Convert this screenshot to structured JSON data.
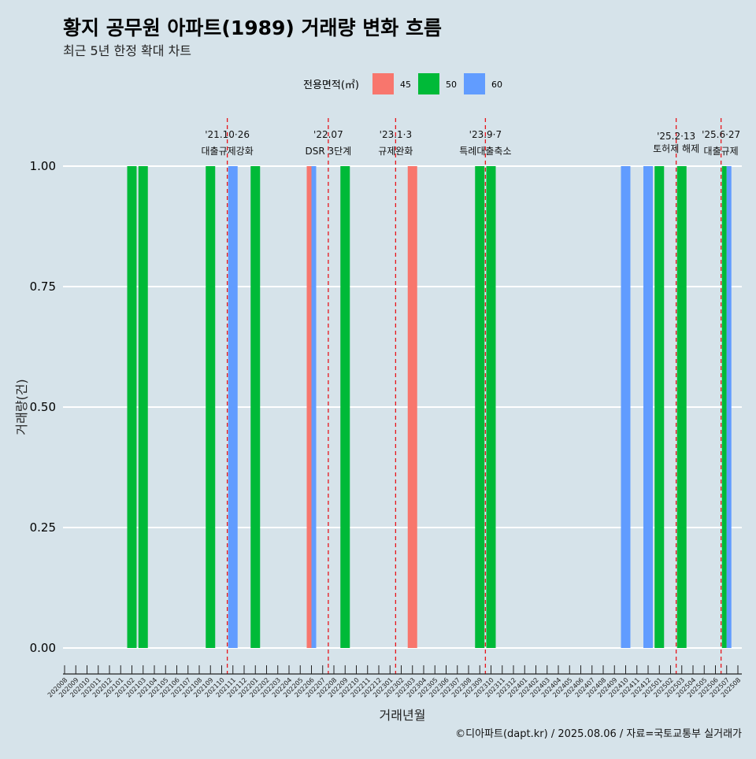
{
  "chart_data": {
    "type": "bar",
    "title": "황지 공무원 아파트(1989) 거래량 변화 흐름",
    "subtitle": "최근 5년 한정 확대 차트",
    "xlabel": "거래년월",
    "ylabel": "거래량(건)",
    "ylim": [
      0,
      1
    ],
    "yticks": [
      "0.00",
      "0.25",
      "0.50",
      "0.75",
      "1.00"
    ],
    "grid": true,
    "legend": {
      "title": "전용면적(㎡)",
      "placement": "top"
    },
    "categories": [
      "202008",
      "202009",
      "202010",
      "202011",
      "202012",
      "202101",
      "202102",
      "202103",
      "202104",
      "202105",
      "202106",
      "202107",
      "202108",
      "202109",
      "202110",
      "202111",
      "202112",
      "202201",
      "202202",
      "202203",
      "202204",
      "202205",
      "202206",
      "202207",
      "202208",
      "202209",
      "202210",
      "202211",
      "202212",
      "202301",
      "202302",
      "202303",
      "202304",
      "202305",
      "202306",
      "202307",
      "202308",
      "202309",
      "202310",
      "202311",
      "202312",
      "202401",
      "202402",
      "202403",
      "202404",
      "202405",
      "202406",
      "202407",
      "202408",
      "202409",
      "202410",
      "202411",
      "202412",
      "202501",
      "202502",
      "202503",
      "202504",
      "202505",
      "202506",
      "202507",
      "202508"
    ],
    "series": [
      {
        "name": "45",
        "color": "#f8766d",
        "values": [
          0,
          0,
          0,
          0,
          0,
          0,
          0,
          0,
          0,
          0,
          0,
          0,
          0,
          0,
          0,
          0,
          0,
          0,
          0,
          0,
          0,
          0,
          1,
          0,
          0,
          0,
          0,
          0,
          0,
          0,
          0,
          1,
          0,
          0,
          0,
          0,
          0,
          0,
          0,
          0,
          0,
          0,
          0,
          0,
          0,
          0,
          0,
          0,
          0,
          0,
          0,
          0,
          0,
          0,
          0,
          0,
          0,
          0,
          0,
          0,
          0
        ]
      },
      {
        "name": "50",
        "color": "#00ba38",
        "values": [
          0,
          0,
          0,
          0,
          0,
          0,
          1,
          1,
          0,
          0,
          0,
          0,
          0,
          1,
          0,
          0,
          0,
          1,
          0,
          0,
          0,
          0,
          0,
          0,
          0,
          1,
          0,
          0,
          0,
          0,
          0,
          0,
          0,
          0,
          0,
          0,
          0,
          1,
          1,
          0,
          0,
          0,
          0,
          0,
          0,
          0,
          0,
          0,
          0,
          0,
          0,
          0,
          0,
          1,
          0,
          1,
          0,
          0,
          0,
          1,
          0
        ]
      },
      {
        "name": "60",
        "color": "#619cff",
        "values": [
          0,
          0,
          0,
          0,
          0,
          0,
          0,
          0,
          0,
          0,
          0,
          0,
          0,
          0,
          0,
          1,
          0,
          0,
          0,
          0,
          0,
          0,
          1,
          0,
          0,
          0,
          0,
          0,
          0,
          0,
          0,
          0,
          0,
          0,
          0,
          0,
          0,
          0,
          0,
          0,
          0,
          0,
          0,
          0,
          0,
          0,
          0,
          0,
          0,
          0,
          1,
          0,
          1,
          0,
          0,
          0,
          0,
          0,
          0,
          1,
          0
        ]
      }
    ],
    "events": [
      {
        "date": "'21.10·26",
        "label": "대출규제강화",
        "month": "202110"
      },
      {
        "date": "'22.07",
        "label": "DSR 3단계",
        "month": "202207"
      },
      {
        "date": "'23.1·3",
        "label": "규제완화",
        "month": "202301"
      },
      {
        "date": "'23.9·7",
        "label": "특례대출축소",
        "month": "202309"
      },
      {
        "date": "'25.2·13",
        "label": "토허제 해제",
        "month": "202502"
      },
      {
        "date": "'25.6·27",
        "label": "대출규제",
        "month": "202506"
      }
    ],
    "caption": "©디아파트(dapt.kr) / 2025.08.06 / 자료=국토교통부 실거래가"
  }
}
